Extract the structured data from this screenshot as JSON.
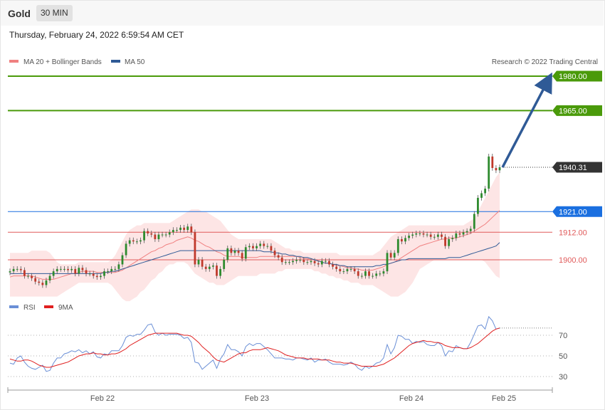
{
  "header": {
    "instrument": "Gold",
    "timeframe": "30 MIN"
  },
  "datetime": "Thursday, February 24, 2022 6:59:54 AM CET",
  "legend": {
    "ma20": "MA 20 + Bollinger Bands",
    "ma50": "MA 50",
    "credit": "Research © 2022 Trading Central",
    "rsi": "RSI",
    "rsi_ma": "9MA"
  },
  "colors": {
    "ma20": "#f08080",
    "ma50": "#2f5a96",
    "band_fill": "#fde0e0",
    "bull": "#2e8b2e",
    "bear": "#c0392b",
    "target": "#4a9a0a",
    "pivot": "#1a6fe0",
    "support": "#e05a5a",
    "price_tag": "#333333",
    "arrow": "#2f5a96",
    "rsi": "#6a8fd6",
    "rsi_ma": "#e02020"
  },
  "chart_data": [
    {
      "type": "candlestick",
      "title": "Gold",
      "timeframe": "30 MIN",
      "x_ticks": [
        "Feb 22",
        "Feb 23",
        "Feb 24",
        "Feb 25"
      ],
      "last_price": 1940.31,
      "levels": [
        {
          "label": "1980.00",
          "value": 1980.0,
          "kind": "target"
        },
        {
          "label": "1965.00",
          "value": 1965.0,
          "kind": "target"
        },
        {
          "label": "1940.31",
          "value": 1940.31,
          "kind": "last"
        },
        {
          "label": "1921.00",
          "value": 1921.0,
          "kind": "pivot"
        },
        {
          "label": "1912.00",
          "value": 1912.0,
          "kind": "support"
        },
        {
          "label": "1900.00",
          "value": 1900.0,
          "kind": "support"
        }
      ],
      "arrow": {
        "from": 1940.31,
        "to": 1980.0
      },
      "close": [
        1895.0,
        1896.0,
        1896.0,
        1895.5,
        1893.0,
        1893.0,
        1892.0,
        1890.5,
        1890.0,
        1889.0,
        1891.0,
        1893.0,
        1895.0,
        1896.0,
        1896.0,
        1896.0,
        1895.5,
        1896.0,
        1894.0,
        1896.5,
        1895.5,
        1894.0,
        1894.0,
        1893.0,
        1892.5,
        1893.0,
        1895.0,
        1895.0,
        1896.0,
        1896.0,
        1898.0,
        1902.0,
        1907.0,
        1908.5,
        1908.0,
        1908.0,
        1908.5,
        1912.5,
        1911.5,
        1911.0,
        1909.0,
        1911.0,
        1911.0,
        1911.0,
        1912.0,
        1913.0,
        1913.0,
        1914.0,
        1913.0,
        1914.5,
        1912.0,
        1898.0,
        1900.0,
        1897.0,
        1896.0,
        1897.0,
        1897.5,
        1893.0,
        1896.0,
        1900.0,
        1905.0,
        1903.0,
        1904.0,
        1903.0,
        1900.5,
        1905.5,
        1906.0,
        1905.0,
        1906.0,
        1907.0,
        1906.0,
        1906.0,
        1904.0,
        1902.0,
        1901.0,
        1899.0,
        1899.0,
        1899.0,
        1899.5,
        1900.0,
        1900.0,
        1899.0,
        1899.0,
        1899.5,
        1898.5,
        1898.0,
        1899.5,
        1899.5,
        1898.0,
        1897.0,
        1896.0,
        1895.0,
        1895.0,
        1896.0,
        1896.0,
        1895.0,
        1893.0,
        1893.0,
        1895.0,
        1893.0,
        1893.0,
        1894.0,
        1894.0,
        1895.0,
        1903.0,
        1901.0,
        1903.0,
        1909.0,
        1908.0,
        1909.5,
        1910.5,
        1911.0,
        1911.5,
        1911.5,
        1911.0,
        1911.0,
        1910.0,
        1910.0,
        1911.0,
        1910.0,
        1906.0,
        1909.0,
        1909.5,
        1911.5,
        1911.0,
        1912.0,
        1912.5,
        1913.5,
        1920.0,
        1927.0,
        1929.0,
        1931.0,
        1945.0,
        1940.0,
        1939.0,
        1940.31
      ],
      "ma20": [
        1892.5,
        1893.0,
        1893.0,
        1893.0,
        1893.0,
        1893.0,
        1893.0,
        1892.5,
        1892.0,
        1891.5,
        1891.5,
        1891.5,
        1891.5,
        1892.0,
        1892.5,
        1893.0,
        1893.5,
        1894.0,
        1894.0,
        1894.5,
        1895.0,
        1895.0,
        1895.0,
        1895.0,
        1894.5,
        1894.5,
        1894.5,
        1894.5,
        1894.5,
        1894.5,
        1895.0,
        1895.5,
        1896.5,
        1897.5,
        1898.5,
        1899.5,
        1900.5,
        1901.5,
        1902.5,
        1903.5,
        1904.0,
        1905.0,
        1905.5,
        1906.5,
        1907.0,
        1907.5,
        1908.5,
        1909.0,
        1909.5,
        1910.0,
        1909.5,
        1908.5,
        1908.0,
        1907.0,
        1906.0,
        1905.5,
        1904.5,
        1903.5,
        1903.0,
        1902.0,
        1901.5,
        1901.5,
        1901.5,
        1901.5,
        1901.0,
        1901.0,
        1901.0,
        1901.0,
        1901.0,
        1901.5,
        1901.5,
        1901.5,
        1901.5,
        1901.5,
        1901.5,
        1901.5,
        1901.5,
        1901.5,
        1901.5,
        1901.5,
        1901.0,
        1900.5,
        1900.5,
        1900.0,
        1900.0,
        1899.5,
        1899.0,
        1898.5,
        1898.5,
        1898.0,
        1897.5,
        1897.5,
        1897.0,
        1896.5,
        1896.5,
        1896.0,
        1896.0,
        1895.5,
        1895.5,
        1895.5,
        1895.5,
        1896.0,
        1896.5,
        1897.0,
        1898.0,
        1898.5,
        1899.0,
        1900.0,
        1901.0,
        1902.0,
        1903.0,
        1904.0,
        1905.0,
        1906.0,
        1906.5,
        1907.0,
        1907.5,
        1908.0,
        1908.5,
        1909.0,
        1909.0,
        1909.5,
        1909.5,
        1909.5,
        1910.0,
        1910.5,
        1911.0,
        1911.5,
        1912.5,
        1913.5,
        1914.5,
        1915.5,
        1917.0,
        1918.5,
        1920.0,
        1921.5
      ],
      "ma50": [
        1894.0,
        1894.0,
        1894.0,
        1894.0,
        1894.0,
        1894.0,
        1894.0,
        1894.0,
        1894.0,
        1894.0,
        1894.0,
        1894.0,
        1894.0,
        1894.0,
        1894.0,
        1894.0,
        1894.0,
        1894.0,
        1894.0,
        1894.0,
        1894.0,
        1894.0,
        1894.0,
        1894.0,
        1894.0,
        1894.0,
        1894.5,
        1894.5,
        1895.0,
        1895.0,
        1895.5,
        1896.0,
        1896.5,
        1897.0,
        1897.5,
        1898.0,
        1898.5,
        1899.0,
        1899.5,
        1900.0,
        1900.5,
        1901.0,
        1901.5,
        1902.0,
        1902.5,
        1903.0,
        1903.5,
        1904.0,
        1904.0,
        1904.0,
        1904.0,
        1904.0,
        1904.0,
        1904.0,
        1904.0,
        1904.0,
        1904.0,
        1904.0,
        1904.0,
        1904.0,
        1904.0,
        1904.0,
        1904.0,
        1904.0,
        1904.0,
        1904.0,
        1904.0,
        1904.0,
        1904.0,
        1904.0,
        1903.5,
        1903.5,
        1903.5,
        1903.0,
        1903.0,
        1902.5,
        1902.5,
        1902.0,
        1902.0,
        1901.5,
        1901.5,
        1901.0,
        1901.0,
        1900.5,
        1900.0,
        1899.5,
        1899.0,
        1898.5,
        1898.5,
        1898.0,
        1898.0,
        1897.5,
        1897.5,
        1897.0,
        1897.0,
        1897.0,
        1897.0,
        1897.0,
        1897.0,
        1897.0,
        1897.0,
        1897.5,
        1897.5,
        1898.0,
        1898.0,
        1898.5,
        1899.0,
        1899.5,
        1900.0,
        1900.0,
        1900.5,
        1900.5,
        1900.5,
        1900.5,
        1900.5,
        1900.5,
        1900.5,
        1900.5,
        1900.5,
        1900.5,
        1900.5,
        1901.0,
        1901.0,
        1901.0,
        1901.0,
        1901.5,
        1902.0,
        1902.5,
        1903.0,
        1903.5,
        1904.0,
        1904.5,
        1905.0,
        1905.5,
        1906.0,
        1907.5
      ],
      "bb_upper": [
        1903,
        1903,
        1903,
        1903,
        1903,
        1903,
        1904,
        1904,
        1904,
        1904,
        1904,
        1903,
        1901,
        1899,
        1898,
        1898,
        1898,
        1898,
        1898,
        1899,
        1899,
        1899,
        1899,
        1899,
        1899,
        1899,
        1899,
        1899,
        1900,
        1902,
        1905,
        1908,
        1911,
        1913,
        1914,
        1915,
        1915,
        1916,
        1916,
        1916,
        1916,
        1916,
        1916,
        1916,
        1916,
        1917,
        1918,
        1919,
        1920,
        1921,
        1922,
        1922,
        1922,
        1921,
        1921,
        1920,
        1919,
        1918,
        1917,
        1915,
        1913,
        1911,
        1910,
        1909,
        1909,
        1909,
        1909,
        1909,
        1909,
        1909,
        1909,
        1909,
        1909,
        1908,
        1907,
        1906,
        1905,
        1905,
        1904,
        1904,
        1904,
        1903,
        1903,
        1903,
        1903,
        1903,
        1903,
        1903,
        1903,
        1903,
        1903,
        1902,
        1902,
        1902,
        1902,
        1902,
        1902,
        1902,
        1902,
        1902,
        1902,
        1903,
        1904,
        1906,
        1908,
        1910,
        1911,
        1912,
        1913,
        1914,
        1915,
        1915,
        1915,
        1915,
        1915,
        1915,
        1915,
        1915,
        1915,
        1915,
        1915,
        1915,
        1915,
        1915,
        1915,
        1915,
        1916,
        1917,
        1918,
        1921,
        1924,
        1927,
        1930,
        1933,
        1936,
        1938
      ],
      "bb_lower": [
        1884,
        1884,
        1884,
        1884,
        1884,
        1884,
        1884,
        1884,
        1884,
        1884,
        1884,
        1884,
        1884,
        1884,
        1885,
        1886,
        1887,
        1888,
        1889,
        1890,
        1890,
        1890,
        1890,
        1890,
        1890,
        1890,
        1890,
        1890,
        1889,
        1887,
        1885,
        1883,
        1882,
        1882,
        1883,
        1884,
        1886,
        1887,
        1889,
        1891,
        1892,
        1894,
        1895,
        1897,
        1898,
        1898,
        1899,
        1899,
        1899,
        1898,
        1896,
        1894,
        1893,
        1892,
        1891,
        1890,
        1890,
        1889,
        1889,
        1889,
        1890,
        1891,
        1892,
        1893,
        1893,
        1893,
        1893,
        1893,
        1893,
        1894,
        1894,
        1894,
        1894,
        1894,
        1895,
        1895,
        1896,
        1896,
        1896,
        1896,
        1896,
        1896,
        1896,
        1896,
        1895,
        1895,
        1894,
        1894,
        1893,
        1893,
        1892,
        1892,
        1891,
        1891,
        1890,
        1890,
        1890,
        1889,
        1889,
        1889,
        1889,
        1888,
        1887,
        1886,
        1885,
        1884,
        1884,
        1884,
        1885,
        1886,
        1888,
        1890,
        1893,
        1896,
        1897,
        1898,
        1899,
        1900,
        1900,
        1900,
        1900,
        1900,
        1900,
        1900,
        1900,
        1900,
        1900,
        1900,
        1900,
        1900,
        1900,
        1899,
        1897,
        1895,
        1893,
        1892
      ]
    },
    {
      "type": "line",
      "x_ticks": [
        "Feb 22",
        "Feb 23",
        "Feb 24",
        "Feb 25"
      ],
      "y_ticks": [
        30,
        50,
        70
      ],
      "series": [
        {
          "name": "RSI",
          "values": [
            43,
            42,
            48,
            50,
            44,
            40,
            38,
            37,
            39,
            41,
            35,
            36,
            43,
            48,
            48,
            52,
            53,
            55,
            54,
            56,
            53,
            55,
            52,
            54,
            49,
            48,
            52,
            51,
            55,
            55,
            55,
            60,
            68,
            70,
            69,
            71,
            71,
            75,
            80,
            81,
            73,
            70,
            72,
            70,
            71,
            71,
            71,
            70,
            67,
            68,
            63,
            44,
            43,
            37,
            40,
            43,
            46,
            38,
            47,
            52,
            61,
            56,
            56,
            54,
            50,
            59,
            62,
            60,
            62,
            62,
            59,
            56,
            52,
            48,
            48,
            48,
            47,
            47,
            46,
            48,
            48,
            47,
            46,
            48,
            44,
            46,
            46,
            47,
            44,
            42,
            42,
            42,
            41,
            42,
            44,
            42,
            38,
            36,
            40,
            38,
            40,
            43,
            44,
            48,
            61,
            52,
            58,
            70,
            69,
            66,
            66,
            62,
            64,
            63,
            64,
            61,
            60,
            60,
            63,
            60,
            50,
            55,
            54,
            60,
            58,
            57,
            57,
            63,
            71,
            79,
            80,
            76,
            88,
            84,
            76,
            77
          ]
        },
        {
          "name": "9MA",
          "values": [
            47,
            46,
            45,
            45,
            46,
            46,
            45,
            43,
            41,
            40,
            39,
            39,
            40,
            41,
            42,
            43,
            44,
            46,
            48,
            50,
            51,
            52,
            52,
            53,
            52,
            52,
            51,
            51,
            52,
            52,
            53,
            55,
            57,
            60,
            62,
            64,
            66,
            68,
            70,
            71,
            72,
            72,
            72,
            72,
            72,
            72,
            72,
            71,
            70,
            70,
            69,
            66,
            63,
            59,
            56,
            53,
            49,
            46,
            45,
            44,
            46,
            48,
            50,
            52,
            53,
            53,
            55,
            56,
            56,
            56,
            57,
            58,
            57,
            56,
            55,
            53,
            51,
            50,
            49,
            48,
            48,
            48,
            47,
            47,
            47,
            47,
            46,
            46,
            46,
            45,
            44,
            44,
            43,
            43,
            43,
            42,
            41,
            40,
            40,
            40,
            40,
            40,
            41,
            42,
            44,
            46,
            48,
            51,
            54,
            57,
            60,
            62,
            63,
            64,
            65,
            64,
            64,
            63,
            63,
            62,
            60,
            59,
            58,
            58,
            58,
            57,
            57,
            58,
            60,
            62,
            65,
            68,
            71,
            74,
            76,
            77
          ]
        }
      ]
    }
  ]
}
